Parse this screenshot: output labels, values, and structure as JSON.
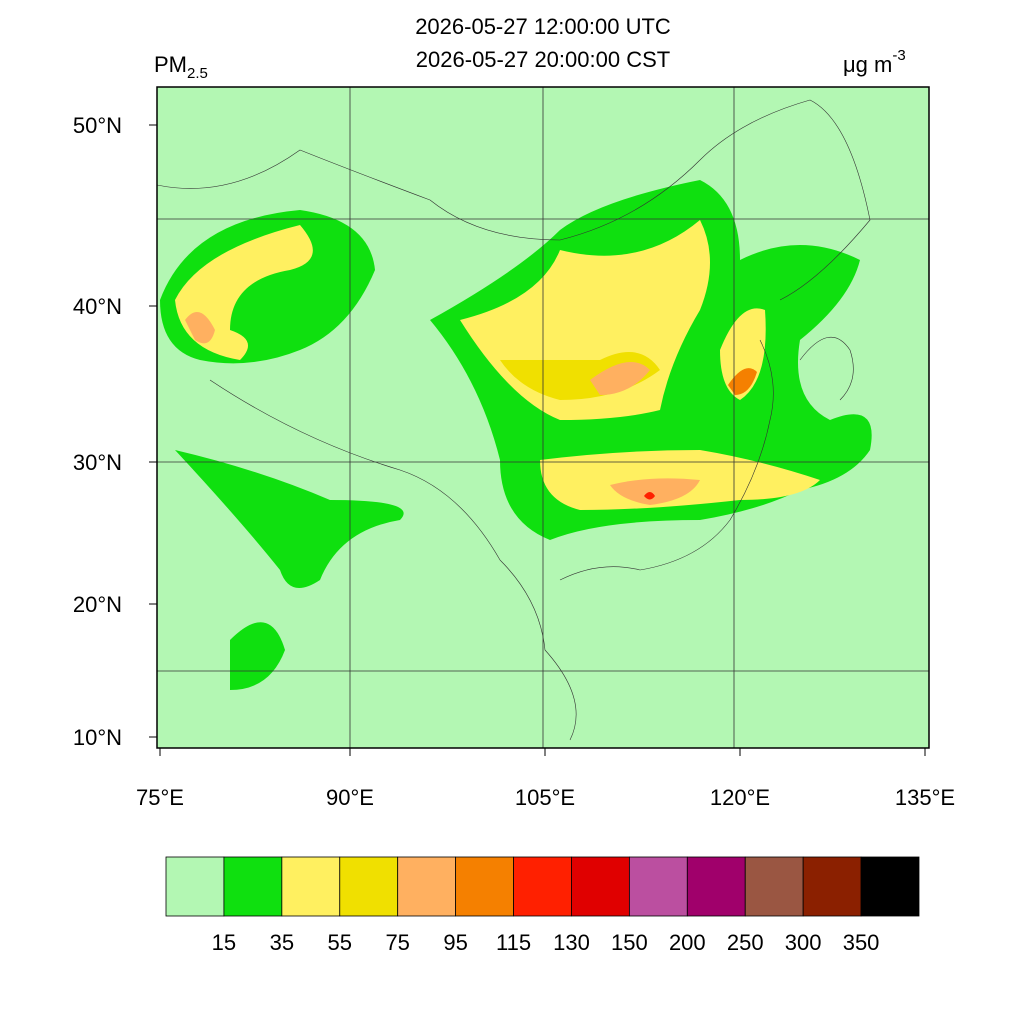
{
  "header": {
    "title_lines": [
      "2026-05-27 12:00:00 UTC",
      "2026-05-27 20:00:00 CST"
    ],
    "variable": "PM",
    "variable_sub": "2.5",
    "unit": "μg m",
    "unit_sup": "-3"
  },
  "map": {
    "lon_ticks": [
      "75°E",
      "90°E",
      "105°E",
      "120°E",
      "135°E"
    ],
    "lat_ticks": [
      "50°N",
      "40°N",
      "30°N",
      "20°N",
      "10°N"
    ]
  },
  "colorbar": {
    "colors": [
      "#b3f7b3",
      "#0fe00f",
      "#fff060",
      "#f0e000",
      "#ffb060",
      "#f58000",
      "#ff2000",
      "#e00000",
      "#bb4fa0",
      "#a0006b",
      "#9a5642",
      "#8b2000",
      "#000000"
    ],
    "levels": [
      15,
      35,
      55,
      75,
      95,
      115,
      130,
      150,
      200,
      250,
      300,
      350
    ]
  }
}
